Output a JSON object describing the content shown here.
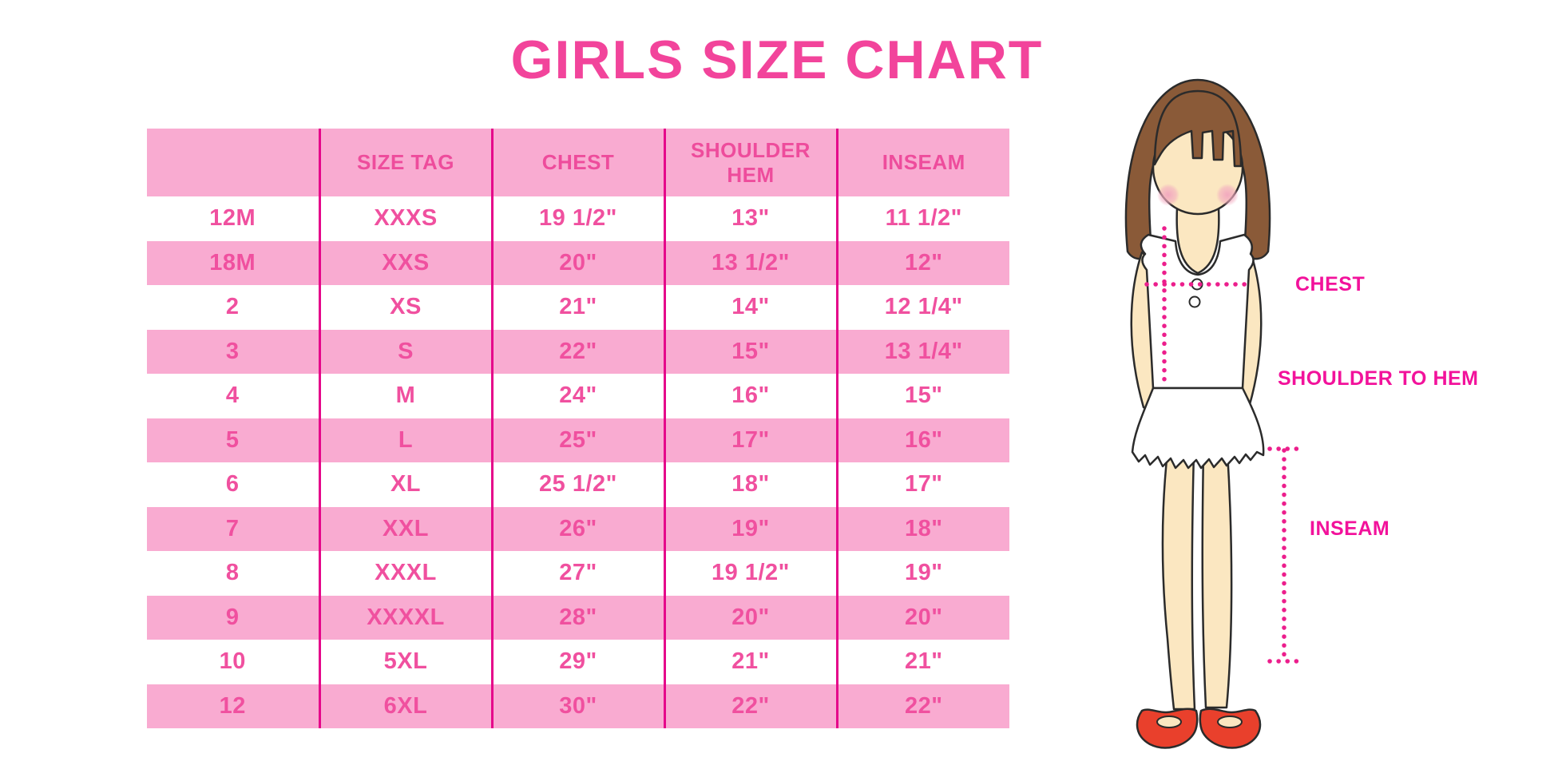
{
  "title": "GIRLS SIZE CHART",
  "chart_data": {
    "type": "table",
    "title": "GIRLS SIZE CHART",
    "columns": [
      "",
      "SIZE TAG",
      "CHEST",
      "SHOULDER HEM",
      "INSEAM"
    ],
    "rows": [
      [
        "12M",
        "XXXS",
        "19 1/2\"",
        "13\"",
        "11 1/2\""
      ],
      [
        "18M",
        "XXS",
        "20\"",
        "13 1/2\"",
        "12\""
      ],
      [
        "2",
        "XS",
        "21\"",
        "14\"",
        "12 1/4\""
      ],
      [
        "3",
        "S",
        "22\"",
        "15\"",
        "13 1/4\""
      ],
      [
        "4",
        "M",
        "24\"",
        "16\"",
        "15\""
      ],
      [
        "5",
        "L",
        "25\"",
        "17\"",
        "16\""
      ],
      [
        "6",
        "XL",
        "25 1/2\"",
        "18\"",
        "17\""
      ],
      [
        "7",
        "XXL",
        "26\"",
        "19\"",
        "18\""
      ],
      [
        "8",
        "XXXL",
        "27\"",
        "19 1/2\"",
        "19\""
      ],
      [
        "9",
        "XXXXL",
        "28\"",
        "20\"",
        "20\""
      ],
      [
        "10",
        "5XL",
        "29\"",
        "21\"",
        "21\""
      ],
      [
        "12",
        "6XL",
        "30\"",
        "22\"",
        "22\""
      ]
    ]
  },
  "diagram": {
    "labels": {
      "chest": "CHEST",
      "shoulder_to_hem": "SHOULDER TO HEM",
      "inseam": "INSEAM"
    }
  },
  "colors": {
    "title": "#F2449B",
    "table_row_pink": "#F9ABD1",
    "table_text": "#F0509F",
    "table_divider": "#E5068A",
    "measurement_label": "#F2129B",
    "dotted_line": "#EC1E8C",
    "hair": "#8A5A38",
    "skin": "#FBE7C1",
    "shoes": "#E9402C"
  }
}
